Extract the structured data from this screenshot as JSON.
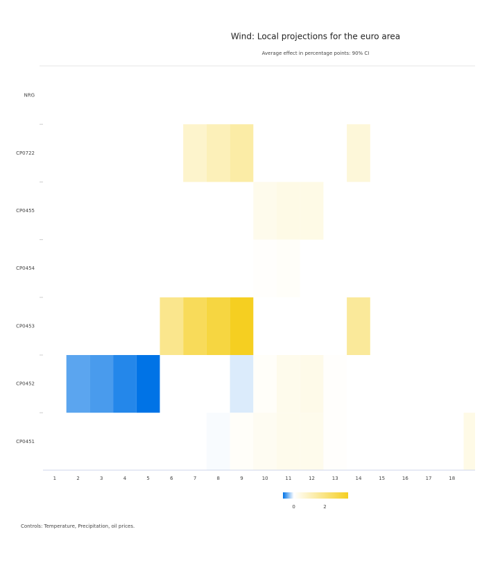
{
  "chart_data": {
    "type": "heatmap",
    "title": "Wind: Local projections for the euro area",
    "subtitle": "Average effect in percentage points: 90% CI",
    "x": [
      1,
      2,
      3,
      4,
      5,
      6,
      7,
      8,
      9,
      10,
      11,
      12,
      13,
      14,
      15,
      16,
      17,
      18,
      null
    ],
    "y": [
      "NRG",
      "CP0722",
      "CP0455",
      "CP0454",
      "CP0453",
      "CP0452",
      "CP0451"
    ],
    "values": [
      [
        null,
        null,
        null,
        null,
        null,
        null,
        null,
        null,
        null,
        null,
        null,
        null,
        null,
        null,
        null,
        null,
        null,
        null,
        null
      ],
      [
        null,
        null,
        null,
        null,
        null,
        null,
        0.8,
        1.1,
        1.4,
        null,
        null,
        null,
        null,
        0.6,
        null,
        null,
        null,
        null,
        null
      ],
      [
        null,
        null,
        null,
        null,
        null,
        null,
        null,
        null,
        null,
        0.3,
        0.4,
        0.4,
        null,
        null,
        null,
        null,
        null,
        null,
        null
      ],
      [
        null,
        null,
        null,
        null,
        null,
        null,
        null,
        null,
        null,
        0.05,
        0.1,
        null,
        null,
        null,
        null,
        null,
        null,
        null,
        null
      ],
      [
        null,
        null,
        null,
        null,
        null,
        1.8,
        2.6,
        3.0,
        3.5,
        null,
        null,
        null,
        null,
        1.6,
        null,
        null,
        null,
        null,
        null
      ],
      [
        null,
        -0.45,
        -0.5,
        -0.6,
        -0.7,
        null,
        null,
        null,
        -0.1,
        0.1,
        0.3,
        0.35,
        0.05,
        null,
        null,
        null,
        null,
        null,
        null
      ],
      [
        null,
        null,
        null,
        null,
        null,
        null,
        null,
        -0.02,
        0.1,
        0.2,
        0.3,
        0.3,
        0.05,
        null,
        null,
        null,
        null,
        null,
        0.4
      ]
    ],
    "colorscale": [
      "#0073e6",
      "#ffffff",
      "#f5cf21"
    ],
    "zlim": [
      -0.7,
      3.5
    ],
    "colorbar_ticks": [
      0,
      2
    ],
    "caption": "Controls: Temperature, Precipitation, oil prices."
  }
}
